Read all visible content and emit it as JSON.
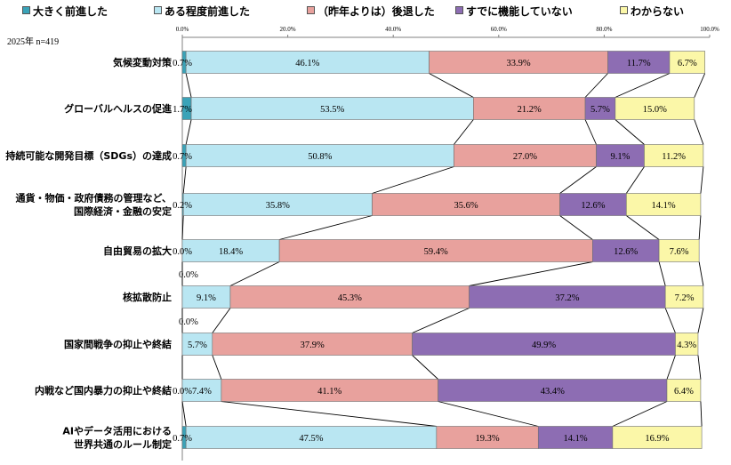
{
  "note": "2025年 n=419",
  "chart_data": {
    "type": "bar",
    "orientation": "horizontal",
    "stacked": true,
    "title": "",
    "xlabel": "",
    "ylabel": "",
    "xlim": [
      0,
      100
    ],
    "x_ticks": [
      "0.0%",
      "20.0%",
      "40.0%",
      "60.0%",
      "80.0%",
      "100.0%"
    ],
    "legend_position": "top",
    "categories": [
      "気候変動対策",
      "グローバルヘルスの促進",
      "持続可能な開発目標（SDGs）の達成",
      "通貨・物価・政府債務の管理など、国際経済・金融の安定",
      "自由貿易の拡大",
      "核拡散防止",
      "国家間戦争の抑止や終結",
      "内戦など国内暴力の抑止や終結",
      "AIやデータ活用における世界共通のルール制定"
    ],
    "series": [
      {
        "name": "大きく前進した",
        "color": "#3aa3b8",
        "values": [
          0.7,
          1.7,
          0.7,
          0.2,
          0.0,
          0.0,
          0.0,
          0.0,
          0.7
        ]
      },
      {
        "name": "ある程度前進した",
        "color": "#b9e6f2",
        "values": [
          46.1,
          53.5,
          50.8,
          35.8,
          18.4,
          9.1,
          5.7,
          7.4,
          47.5
        ]
      },
      {
        "name": "（昨年よりは）後退した",
        "color": "#e8a19d",
        "values": [
          33.9,
          21.2,
          27.0,
          35.6,
          59.4,
          45.3,
          37.9,
          41.1,
          19.3
        ]
      },
      {
        "name": "すでに機能していない",
        "color": "#8d6db3",
        "values": [
          11.7,
          5.7,
          9.1,
          12.6,
          12.6,
          37.2,
          49.9,
          43.4,
          14.1
        ]
      },
      {
        "name": "わからない",
        "color": "#fbf7a8",
        "values": [
          6.7,
          15.0,
          11.2,
          14.1,
          7.6,
          7.2,
          4.3,
          6.4,
          16.9
        ]
      }
    ]
  }
}
